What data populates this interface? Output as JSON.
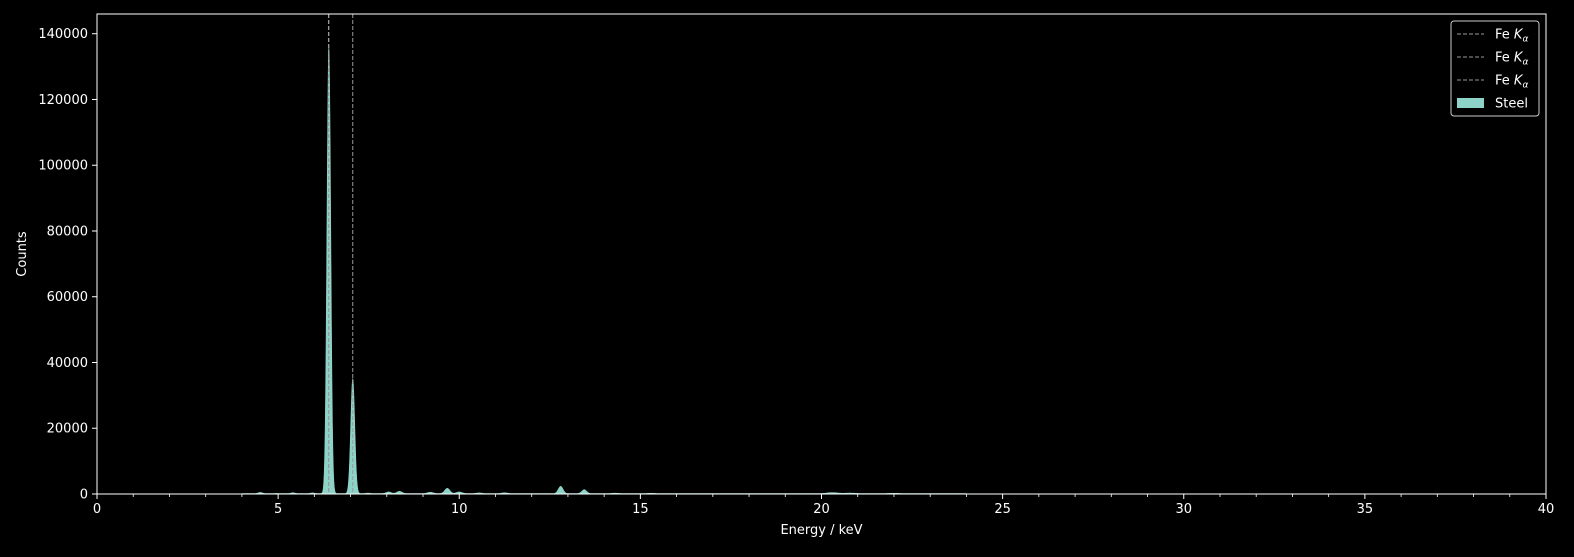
{
  "chart_data": {
    "type": "area",
    "title": "",
    "xlabel": "Energy / keV",
    "ylabel": "Counts",
    "xlim": [
      0,
      40
    ],
    "ylim": [
      0,
      146000
    ],
    "x_ticks": [
      0,
      5,
      10,
      15,
      20,
      25,
      30,
      35,
      40
    ],
    "x_tick_labels": [
      "0",
      "5",
      "10",
      "15",
      "20",
      "25",
      "30",
      "35",
      "40"
    ],
    "x_minor_step": 1,
    "y_ticks": [
      0,
      20000,
      40000,
      60000,
      80000,
      100000,
      120000,
      140000
    ],
    "y_tick_labels": [
      "0",
      "20000",
      "40000",
      "60000",
      "80000",
      "100000",
      "120000",
      "140000"
    ],
    "grid": false,
    "legend_placement": "top-right",
    "background_color": "#000000",
    "reference_lines": [
      {
        "legend_prefix": "Fe ",
        "legend_symbol": "K",
        "legend_subscript": "α",
        "x": 6.39,
        "color": "#9a9a9a"
      },
      {
        "legend_prefix": "Fe ",
        "legend_symbol": "K",
        "legend_subscript": "α",
        "x": 6.4,
        "color": "#9a9a9a"
      },
      {
        "legend_prefix": "Fe ",
        "legend_symbol": "K",
        "legend_subscript": "α",
        "x": 7.06,
        "color": "#9a9a9a"
      }
    ],
    "series": [
      {
        "name": "Steel",
        "color": "#8dd3c7",
        "peaks": [
          {
            "center": 4.51,
            "height": 350,
            "width": 0.06
          },
          {
            "center": 4.95,
            "height": 60,
            "width": 0.06
          },
          {
            "center": 5.41,
            "height": 250,
            "width": 0.06
          },
          {
            "center": 5.95,
            "height": 200,
            "width": 0.06
          },
          {
            "center": 6.4,
            "height": 136000,
            "width": 0.052
          },
          {
            "center": 7.06,
            "height": 35000,
            "width": 0.055
          },
          {
            "center": 7.48,
            "height": 150,
            "width": 0.06
          },
          {
            "center": 8.05,
            "height": 500,
            "width": 0.07
          },
          {
            "center": 8.35,
            "height": 700,
            "width": 0.07
          },
          {
            "center": 9.2,
            "height": 400,
            "width": 0.08
          },
          {
            "center": 9.67,
            "height": 1600,
            "width": 0.07
          },
          {
            "center": 10.0,
            "height": 500,
            "width": 0.08
          },
          {
            "center": 10.55,
            "height": 200,
            "width": 0.08
          },
          {
            "center": 11.25,
            "height": 250,
            "width": 0.08
          },
          {
            "center": 12.8,
            "height": 2200,
            "width": 0.065
          },
          {
            "center": 13.45,
            "height": 1200,
            "width": 0.065
          },
          {
            "center": 14.3,
            "height": 120,
            "width": 0.1
          },
          {
            "center": 15.3,
            "height": 100,
            "width": 0.1
          },
          {
            "center": 20.3,
            "height": 300,
            "width": 0.15
          },
          {
            "center": 20.8,
            "height": 150,
            "width": 0.15
          },
          {
            "center": 22.0,
            "height": 100,
            "width": 0.15
          }
        ],
        "background": {
          "start": 4.0,
          "end": 24.0,
          "level": 120
        }
      }
    ]
  }
}
